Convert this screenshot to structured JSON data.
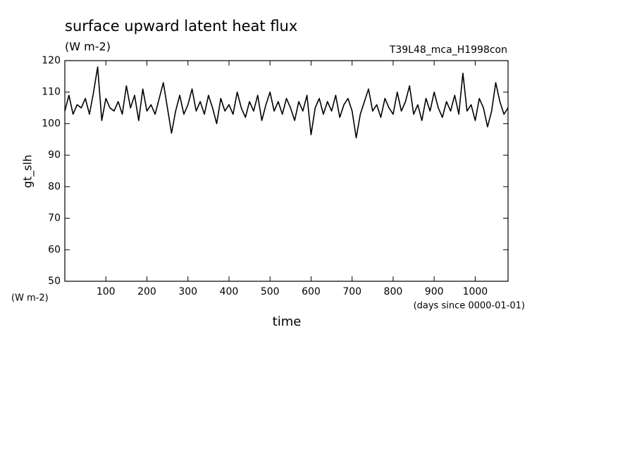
{
  "chart_data": {
    "type": "line",
    "title": "surface upward latent heat flux",
    "subtitle": "(W m-2)",
    "run_label": "T39L48_mca_H1998con",
    "ylabel": "gt_slh",
    "yunit_label": "(W m-2)",
    "xunit_label": "(days since 0000-01-01)",
    "xlabel": "time",
    "x": [
      0,
      10,
      20,
      30,
      40,
      50,
      60,
      70,
      80,
      90,
      100,
      110,
      120,
      130,
      140,
      150,
      160,
      170,
      180,
      190,
      200,
      210,
      220,
      230,
      240,
      250,
      260,
      270,
      280,
      290,
      300,
      310,
      320,
      330,
      340,
      350,
      360,
      370,
      380,
      390,
      400,
      410,
      420,
      430,
      440,
      450,
      460,
      470,
      480,
      490,
      500,
      510,
      520,
      530,
      540,
      550,
      560,
      570,
      580,
      590,
      600,
      610,
      620,
      630,
      640,
      650,
      660,
      670,
      680,
      690,
      700,
      710,
      720,
      730,
      740,
      750,
      760,
      770,
      780,
      790,
      800,
      810,
      820,
      830,
      840,
      850,
      860,
      870,
      880,
      890,
      900,
      910,
      920,
      930,
      940,
      950,
      960,
      970,
      980,
      990,
      1000,
      1010,
      1020,
      1030,
      1040,
      1050,
      1060,
      1070,
      1080
    ],
    "series": [
      {
        "name": "gt_slh",
        "color": "#000000",
        "values": [
          104,
          109,
          103,
          106,
          105,
          108,
          103,
          110,
          118,
          101,
          108,
          105,
          104,
          107,
          103,
          112,
          105,
          109,
          101,
          111,
          104,
          106,
          103,
          108,
          113,
          105,
          97,
          104,
          109,
          103,
          106,
          111,
          104,
          107,
          103,
          109,
          105,
          100,
          108,
          104,
          106,
          103,
          110,
          105,
          102,
          107,
          104,
          109,
          101,
          106,
          110,
          104,
          107,
          103,
          108,
          105,
          101,
          107,
          104,
          109,
          96.5,
          105,
          108,
          103,
          107,
          104,
          109,
          102,
          106,
          108,
          104,
          95.5,
          103,
          107,
          111,
          104,
          106,
          102,
          108,
          105,
          103,
          110,
          104,
          107,
          112,
          103,
          106,
          101,
          108,
          104,
          110,
          105,
          102,
          107,
          104,
          109,
          103,
          116,
          104,
          106,
          101,
          108,
          105,
          99,
          104,
          113,
          107,
          103,
          105
        ]
      }
    ],
    "xlim": [
      0,
      1080
    ],
    "ylim": [
      50,
      120
    ],
    "xticks": [
      100,
      200,
      300,
      400,
      500,
      600,
      700,
      800,
      900,
      1000
    ],
    "yticks": [
      50,
      60,
      70,
      80,
      90,
      100,
      110,
      120
    ],
    "grid": false
  }
}
